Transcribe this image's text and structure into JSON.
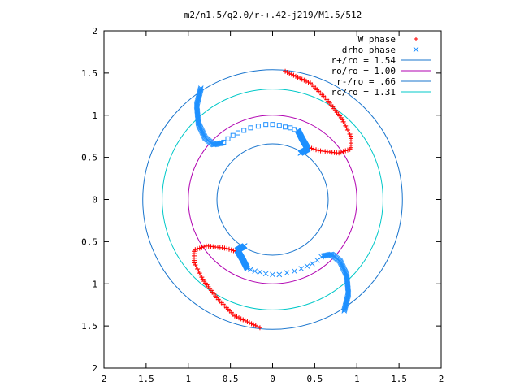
{
  "chart_data": {
    "type": "scatter",
    "title": "m2/n1.5/q2.0/r-+.42-j219/M1.5/512",
    "xlabel": "",
    "ylabel": "",
    "xlim": [
      -2,
      2
    ],
    "ylim": [
      -2,
      2
    ],
    "x_tick_values": [
      -2,
      -1.5,
      -1,
      -0.5,
      0,
      0.5,
      1,
      1.5,
      2
    ],
    "x_tick_labels": [
      "2",
      "1.5",
      "1",
      "0.5",
      "0",
      "0.5",
      "1",
      "1.5",
      "2"
    ],
    "y_tick_values": [
      2,
      1.5,
      1,
      0.5,
      0,
      -0.5,
      -1,
      -1.5,
      -2
    ],
    "y_tick_labels": [
      "2",
      "1.5",
      "1",
      "0.5",
      "0",
      "0.5",
      "1",
      "1.5",
      "2"
    ],
    "grid": false,
    "legend_position": "top-right",
    "series": [
      {
        "name": "W phase",
        "marker": "plus",
        "color": "#ff0000",
        "branches": [
          [
            [
              0.15,
              1.52
            ],
            [
              0.45,
              1.38
            ],
            [
              0.65,
              1.18
            ],
            [
              0.82,
              0.96
            ],
            [
              0.93,
              0.75
            ],
            [
              0.93,
              0.6
            ],
            [
              0.78,
              0.55
            ],
            [
              0.55,
              0.58
            ],
            [
              0.42,
              0.62
            ],
            [
              0.35,
              0.56
            ]
          ],
          [
            [
              -0.15,
              -1.52
            ],
            [
              -0.45,
              -1.38
            ],
            [
              -0.65,
              -1.18
            ],
            [
              -0.82,
              -0.96
            ],
            [
              -0.93,
              -0.75
            ],
            [
              -0.93,
              -0.6
            ],
            [
              -0.78,
              -0.55
            ],
            [
              -0.55,
              -0.58
            ],
            [
              -0.42,
              -0.62
            ],
            [
              -0.35,
              -0.56
            ]
          ]
        ]
      },
      {
        "name": "drho phase",
        "marker": "cross",
        "color": "#1e90ff",
        "branches": [
          [
            [
              -0.85,
              1.32
            ],
            [
              -0.9,
              1.12
            ],
            [
              -0.88,
              0.9
            ],
            [
              -0.8,
              0.73
            ],
            [
              -0.7,
              0.65
            ],
            [
              -0.6,
              0.67
            ]
          ],
          [
            [
              0.3,
              0.82
            ],
            [
              0.35,
              0.72
            ],
            [
              0.42,
              0.6
            ],
            [
              0.33,
              0.55
            ]
          ],
          [
            [
              0.85,
              -1.32
            ],
            [
              0.9,
              -1.12
            ],
            [
              0.88,
              -0.9
            ],
            [
              0.8,
              -0.73
            ],
            [
              0.7,
              -0.65
            ],
            [
              0.6,
              -0.67
            ]
          ],
          [
            [
              -0.3,
              -0.82
            ],
            [
              -0.35,
              -0.72
            ],
            [
              -0.42,
              -0.6
            ],
            [
              -0.33,
              -0.55
            ]
          ]
        ],
        "sparse_points": [
          [
            [
              -0.58,
              0.68
            ],
            [
              -0.53,
              0.72
            ],
            [
              -0.47,
              0.76
            ],
            [
              -0.41,
              0.79
            ],
            [
              -0.34,
              0.82
            ],
            [
              -0.26,
              0.85
            ],
            [
              -0.17,
              0.87
            ],
            [
              -0.08,
              0.89
            ],
            [
              0.0,
              0.89
            ],
            [
              0.08,
              0.88
            ],
            [
              0.15,
              0.86
            ],
            [
              0.21,
              0.85
            ],
            [
              0.26,
              0.83
            ]
          ],
          [
            [
              0.58,
              -0.68
            ],
            [
              0.53,
              -0.72
            ],
            [
              0.47,
              -0.76
            ],
            [
              0.41,
              -0.79
            ],
            [
              0.34,
              -0.82
            ],
            [
              0.26,
              -0.85
            ],
            [
              0.17,
              -0.87
            ],
            [
              0.08,
              -0.89
            ],
            [
              0.0,
              -0.89
            ],
            [
              -0.08,
              -0.88
            ],
            [
              -0.15,
              -0.86
            ],
            [
              -0.21,
              -0.85
            ],
            [
              -0.26,
              -0.83
            ]
          ]
        ]
      },
      {
        "name": "r+/ro = 1.54",
        "type": "circle",
        "radius": 1.54,
        "color": "#1874cd"
      },
      {
        "name": "ro/ro = 1.00",
        "type": "circle",
        "radius": 1.0,
        "color": "#b000b0"
      },
      {
        "name": "r-/ro = .66",
        "type": "circle",
        "radius": 0.66,
        "color": "#1874cd"
      },
      {
        "name": "rc/ro = 1.31",
        "type": "circle",
        "radius": 1.31,
        "color": "#00c8c8"
      }
    ]
  }
}
